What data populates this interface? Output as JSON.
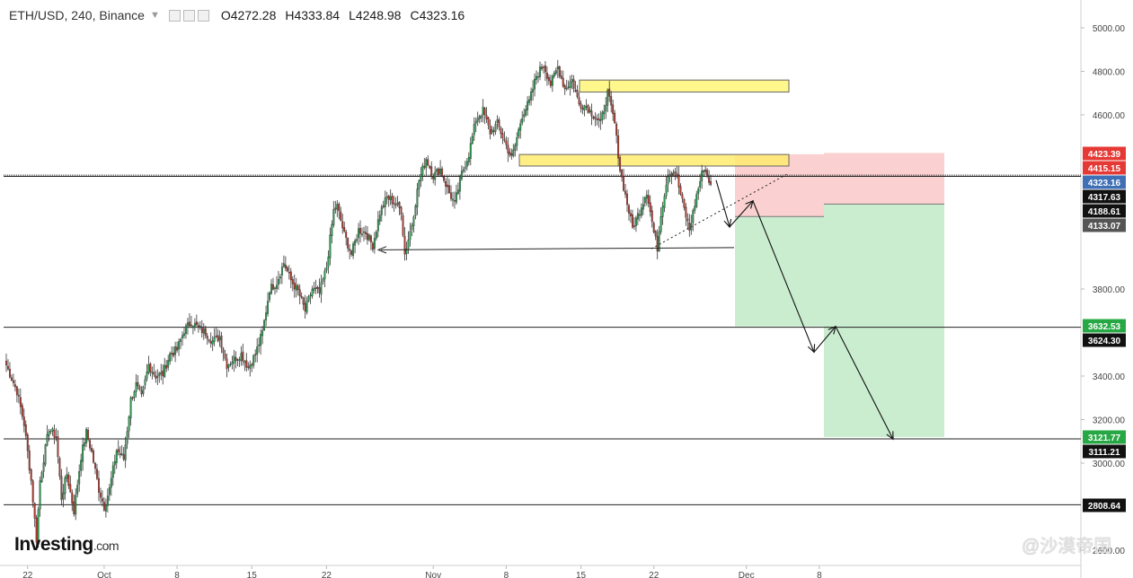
{
  "header": {
    "symbol": "ETH/USD, 240, Binance",
    "open": "O4272.28",
    "high": "H4333.84",
    "low": "L4248.98",
    "close": "C4323.16"
  },
  "logo": {
    "main": "Investing",
    "suffix": ".com"
  },
  "watermark": "@沙漠帝国",
  "chart_data": {
    "type": "candlestick",
    "ylim": [
      2600,
      5050
    ],
    "y_ticks": [
      5000,
      4800,
      4600,
      3800,
      3400,
      3200,
      3000,
      2600
    ],
    "x_ticks": [
      {
        "label": "22",
        "index": 12
      },
      {
        "label": "Oct",
        "index": 55
      },
      {
        "label": "8",
        "index": 96
      },
      {
        "label": "15",
        "index": 138
      },
      {
        "label": "22",
        "index": 180
      },
      {
        "label": "Nov",
        "index": 240
      },
      {
        "label": "8",
        "index": 281
      },
      {
        "label": "15",
        "index": 323
      },
      {
        "label": "22",
        "index": 364
      },
      {
        "label": "Dec",
        "index": 416
      },
      {
        "label": "8",
        "index": 457
      }
    ],
    "path_anchors": [
      [
        0,
        3450
      ],
      [
        6,
        3330
      ],
      [
        10,
        3180
      ],
      [
        14,
        2920
      ],
      [
        17,
        2650
      ],
      [
        19,
        2920
      ],
      [
        21,
        3020
      ],
      [
        24,
        3160
      ],
      [
        28,
        3120
      ],
      [
        31,
        2840
      ],
      [
        34,
        2950
      ],
      [
        38,
        2780
      ],
      [
        42,
        3030
      ],
      [
        45,
        3140
      ],
      [
        48,
        3050
      ],
      [
        52,
        2880
      ],
      [
        55,
        2800
      ],
      [
        58,
        2880
      ],
      [
        62,
        3060
      ],
      [
        66,
        3020
      ],
      [
        70,
        3290
      ],
      [
        73,
        3360
      ],
      [
        76,
        3300
      ],
      [
        80,
        3450
      ],
      [
        84,
        3400
      ],
      [
        88,
        3410
      ],
      [
        92,
        3500
      ],
      [
        96,
        3520
      ],
      [
        100,
        3610
      ],
      [
        104,
        3650
      ],
      [
        108,
        3620
      ],
      [
        112,
        3600
      ],
      [
        116,
        3560
      ],
      [
        120,
        3580
      ],
      [
        124,
        3450
      ],
      [
        128,
        3480
      ],
      [
        132,
        3500
      ],
      [
        136,
        3440
      ],
      [
        140,
        3500
      ],
      [
        144,
        3600
      ],
      [
        148,
        3800
      ],
      [
        152,
        3830
      ],
      [
        156,
        3920
      ],
      [
        160,
        3840
      ],
      [
        164,
        3790
      ],
      [
        168,
        3700
      ],
      [
        172,
        3800
      ],
      [
        176,
        3780
      ],
      [
        180,
        3900
      ],
      [
        184,
        4160
      ],
      [
        186,
        4180
      ],
      [
        190,
        4050
      ],
      [
        194,
        3960
      ],
      [
        198,
        4070
      ],
      [
        202,
        4060
      ],
      [
        206,
        4000
      ],
      [
        210,
        4150
      ],
      [
        214,
        4220
      ],
      [
        218,
        4200
      ],
      [
        222,
        4160
      ],
      [
        224,
        3960
      ],
      [
        228,
        4100
      ],
      [
        232,
        4300
      ],
      [
        236,
        4400
      ],
      [
        240,
        4320
      ],
      [
        244,
        4350
      ],
      [
        248,
        4260
      ],
      [
        252,
        4190
      ],
      [
        256,
        4330
      ],
      [
        260,
        4420
      ],
      [
        264,
        4580
      ],
      [
        268,
        4620
      ],
      [
        272,
        4520
      ],
      [
        276,
        4560
      ],
      [
        280,
        4480
      ],
      [
        284,
        4400
      ],
      [
        286,
        4460
      ],
      [
        290,
        4600
      ],
      [
        294,
        4660
      ],
      [
        298,
        4780
      ],
      [
        302,
        4830
      ],
      [
        306,
        4740
      ],
      [
        310,
        4820
      ],
      [
        314,
        4720
      ],
      [
        318,
        4760
      ],
      [
        322,
        4650
      ],
      [
        326,
        4640
      ],
      [
        330,
        4600
      ],
      [
        334,
        4560
      ],
      [
        338,
        4700
      ],
      [
        342,
        4560
      ],
      [
        345,
        4350
      ],
      [
        348,
        4230
      ],
      [
        352,
        4080
      ],
      [
        356,
        4160
      ],
      [
        360,
        4250
      ],
      [
        364,
        4060
      ],
      [
        366,
        3990
      ],
      [
        368,
        4150
      ],
      [
        372,
        4330
      ],
      [
        376,
        4340
      ],
      [
        380,
        4200
      ],
      [
        384,
        4070
      ],
      [
        388,
        4230
      ],
      [
        392,
        4360
      ],
      [
        396,
        4280
      ]
    ],
    "levels": [
      {
        "value": 4423.39,
        "label": "4423.39",
        "color": "#e53935"
      },
      {
        "value": 4415.15,
        "label": "4415.15",
        "color": "#e53935"
      },
      {
        "value": 4323.16,
        "label": "4323.16",
        "color": "#3f6fb5"
      },
      {
        "value": 4317.63,
        "label": "4317.63",
        "color": "#111111"
      },
      {
        "value": 4188.61,
        "label": "4188.61",
        "color": "#111111"
      },
      {
        "value": 4133.07,
        "label": "4133.07",
        "color": "#555555"
      },
      {
        "value": 3632.53,
        "label": "3632.53",
        "color": "#27a844"
      },
      {
        "value": 3624.3,
        "label": "3624.30",
        "color": "#111111"
      },
      {
        "value": 3121.77,
        "label": "3121.77",
        "color": "#27a844"
      },
      {
        "value": 3111.21,
        "label": "3111.21",
        "color": "#111111"
      },
      {
        "value": 2808.64,
        "label": "2808.64",
        "color": "#111111"
      }
    ]
  }
}
